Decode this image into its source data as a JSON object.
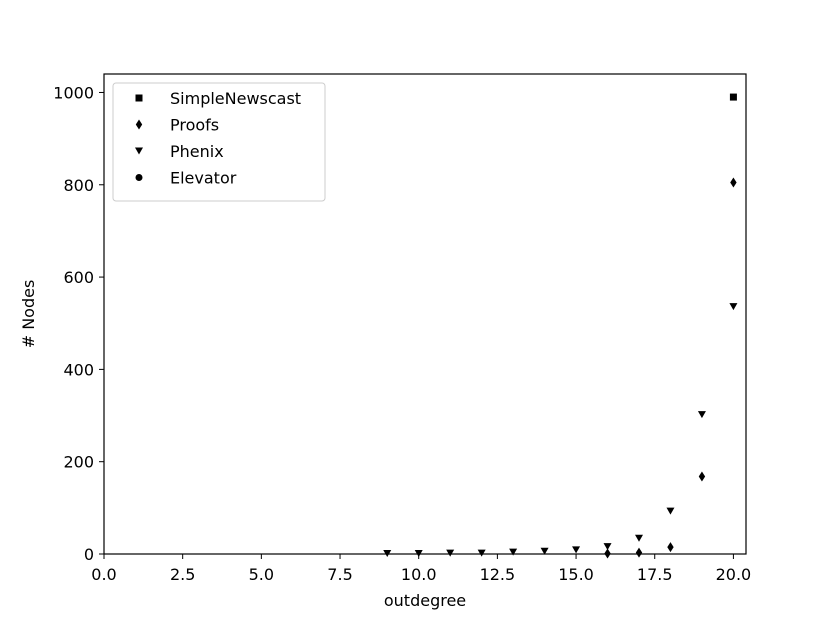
{
  "chart_data": {
    "type": "scatter",
    "title": "",
    "xlabel": "outdegree",
    "ylabel": "# Nodes",
    "xlim": [
      0,
      20.4
    ],
    "ylim": [
      0,
      1040
    ],
    "xticks": [
      0.0,
      2.5,
      5.0,
      7.5,
      10.0,
      12.5,
      15.0,
      17.5,
      20.0
    ],
    "xtick_labels": [
      "0.0",
      "2.5",
      "5.0",
      "7.5",
      "10.0",
      "12.5",
      "15.0",
      "17.5",
      "20.0"
    ],
    "yticks": [
      0,
      200,
      400,
      600,
      800,
      1000
    ],
    "ytick_labels": [
      "0",
      "200",
      "400",
      "600",
      "800",
      "1000"
    ],
    "grid": false,
    "legend_position": "top-left",
    "series": [
      {
        "name": "SimpleNewscast",
        "marker": "square",
        "color": "#000000",
        "points": [
          [
            20,
            990
          ]
        ]
      },
      {
        "name": "Proofs",
        "marker": "diamond",
        "color": "#000000",
        "points": [
          [
            16,
            1
          ],
          [
            17,
            3
          ],
          [
            18,
            15
          ],
          [
            19,
            168
          ],
          [
            20,
            805
          ]
        ]
      },
      {
        "name": "Phenix",
        "marker": "triangle-down",
        "color": "#000000",
        "points": [
          [
            9,
            1
          ],
          [
            10,
            1
          ],
          [
            11,
            2
          ],
          [
            12,
            2
          ],
          [
            13,
            4
          ],
          [
            14,
            6
          ],
          [
            15,
            9
          ],
          [
            16,
            16
          ],
          [
            17,
            34
          ],
          [
            18,
            93
          ],
          [
            19,
            302
          ],
          [
            20,
            536
          ]
        ]
      },
      {
        "name": "Elevator",
        "marker": "circle",
        "color": "#000000",
        "points": []
      }
    ]
  }
}
